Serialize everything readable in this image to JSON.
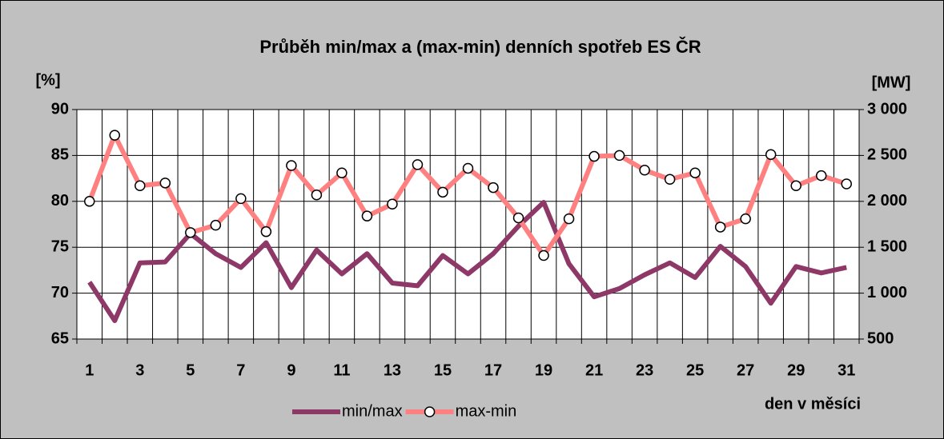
{
  "chart_data": {
    "type": "line",
    "title": "Průběh min/max a (max-min) denních spotřeb ES ČR",
    "y_label": "[%]",
    "y2_label": "[MW]",
    "x_label": "den v měsíci",
    "categories": [
      1,
      null,
      3,
      null,
      5,
      null,
      7,
      null,
      9,
      null,
      11,
      null,
      13,
      null,
      15,
      null,
      17,
      null,
      19,
      null,
      21,
      null,
      23,
      null,
      25,
      null,
      27,
      null,
      29,
      null,
      31
    ],
    "series": [
      {
        "name": "min/max",
        "color": "#8e3868",
        "marker": false,
        "values": [
          71.2,
          67.0,
          73.3,
          73.4,
          76.5,
          74.3,
          72.8,
          75.5,
          70.6,
          74.7,
          72.1,
          74.3,
          71.1,
          70.8,
          74.1,
          72.1,
          74.3,
          77.3,
          79.9,
          73.2,
          69.6,
          70.5,
          72.0,
          73.3,
          71.7,
          75.1,
          72.9,
          68.9,
          72.9,
          72.2,
          72.8
        ]
      },
      {
        "name": "max-min",
        "color": "#ff8080",
        "marker": true,
        "axis": "y2",
        "values": [
          2000,
          2720,
          2170,
          2200,
          1660,
          1740,
          2030,
          1670,
          2390,
          2070,
          2310,
          1840,
          1970,
          2400,
          2100,
          2360,
          2150,
          1820,
          1410,
          1810,
          2490,
          2500,
          2340,
          2240,
          2310,
          1720,
          1810,
          2510,
          2170,
          2280,
          2190
        ]
      }
    ],
    "ylim": [
      65,
      90
    ],
    "yticks": [
      65,
      70,
      75,
      80,
      85,
      90
    ],
    "y2lim": [
      500,
      3000
    ],
    "y2ticks": [
      500,
      {
        "value": 1000,
        "label": "1 000"
      },
      {
        "value": 1500,
        "label": "1 500"
      },
      {
        "value": 2000,
        "label": "2 000"
      },
      {
        "value": 2500,
        "label": "2 500"
      },
      {
        "value": 3000,
        "label": "3 000"
      }
    ],
    "grid": true,
    "legend": "bottom"
  }
}
